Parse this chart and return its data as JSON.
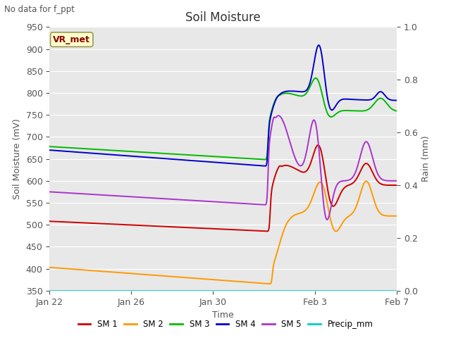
{
  "title": "Soil Moisture",
  "subtitle": "No data for f_ppt",
  "xlabel": "Time",
  "ylabel_left": "Soil Moisture (mV)",
  "ylabel_right": "Rain (mm)",
  "ylim_left": [
    350,
    950
  ],
  "ylim_right": [
    0.0,
    1.0
  ],
  "yticks_left": [
    350,
    400,
    450,
    500,
    550,
    600,
    650,
    700,
    750,
    800,
    850,
    900,
    950
  ],
  "yticks_right": [
    0.0,
    0.2,
    0.4,
    0.6,
    0.8,
    1.0
  ],
  "bg_color": "#e8e8e8",
  "fig_color": "#ffffff",
  "legend_box_color": "#ffffcc",
  "legend_box_edge": "#8b0000",
  "legend_box_text": "VR_met",
  "series": {
    "SM1": {
      "color": "#cc0000",
      "label": "SM 1"
    },
    "SM2": {
      "color": "#ff9900",
      "label": "SM 2"
    },
    "SM3": {
      "color": "#00bb00",
      "label": "SM 3"
    },
    "SM4": {
      "color": "#0000cc",
      "label": "SM 4"
    },
    "SM5": {
      "color": "#aa33cc",
      "label": "SM 5"
    },
    "Precip": {
      "color": "#00cccc",
      "label": "Precip_mm"
    }
  },
  "xtick_labels": [
    "Jan 22",
    "Jan 26",
    "Jan 30",
    "Feb 3",
    "Feb 7"
  ],
  "xtick_positions": [
    0,
    4,
    8,
    13,
    17
  ]
}
